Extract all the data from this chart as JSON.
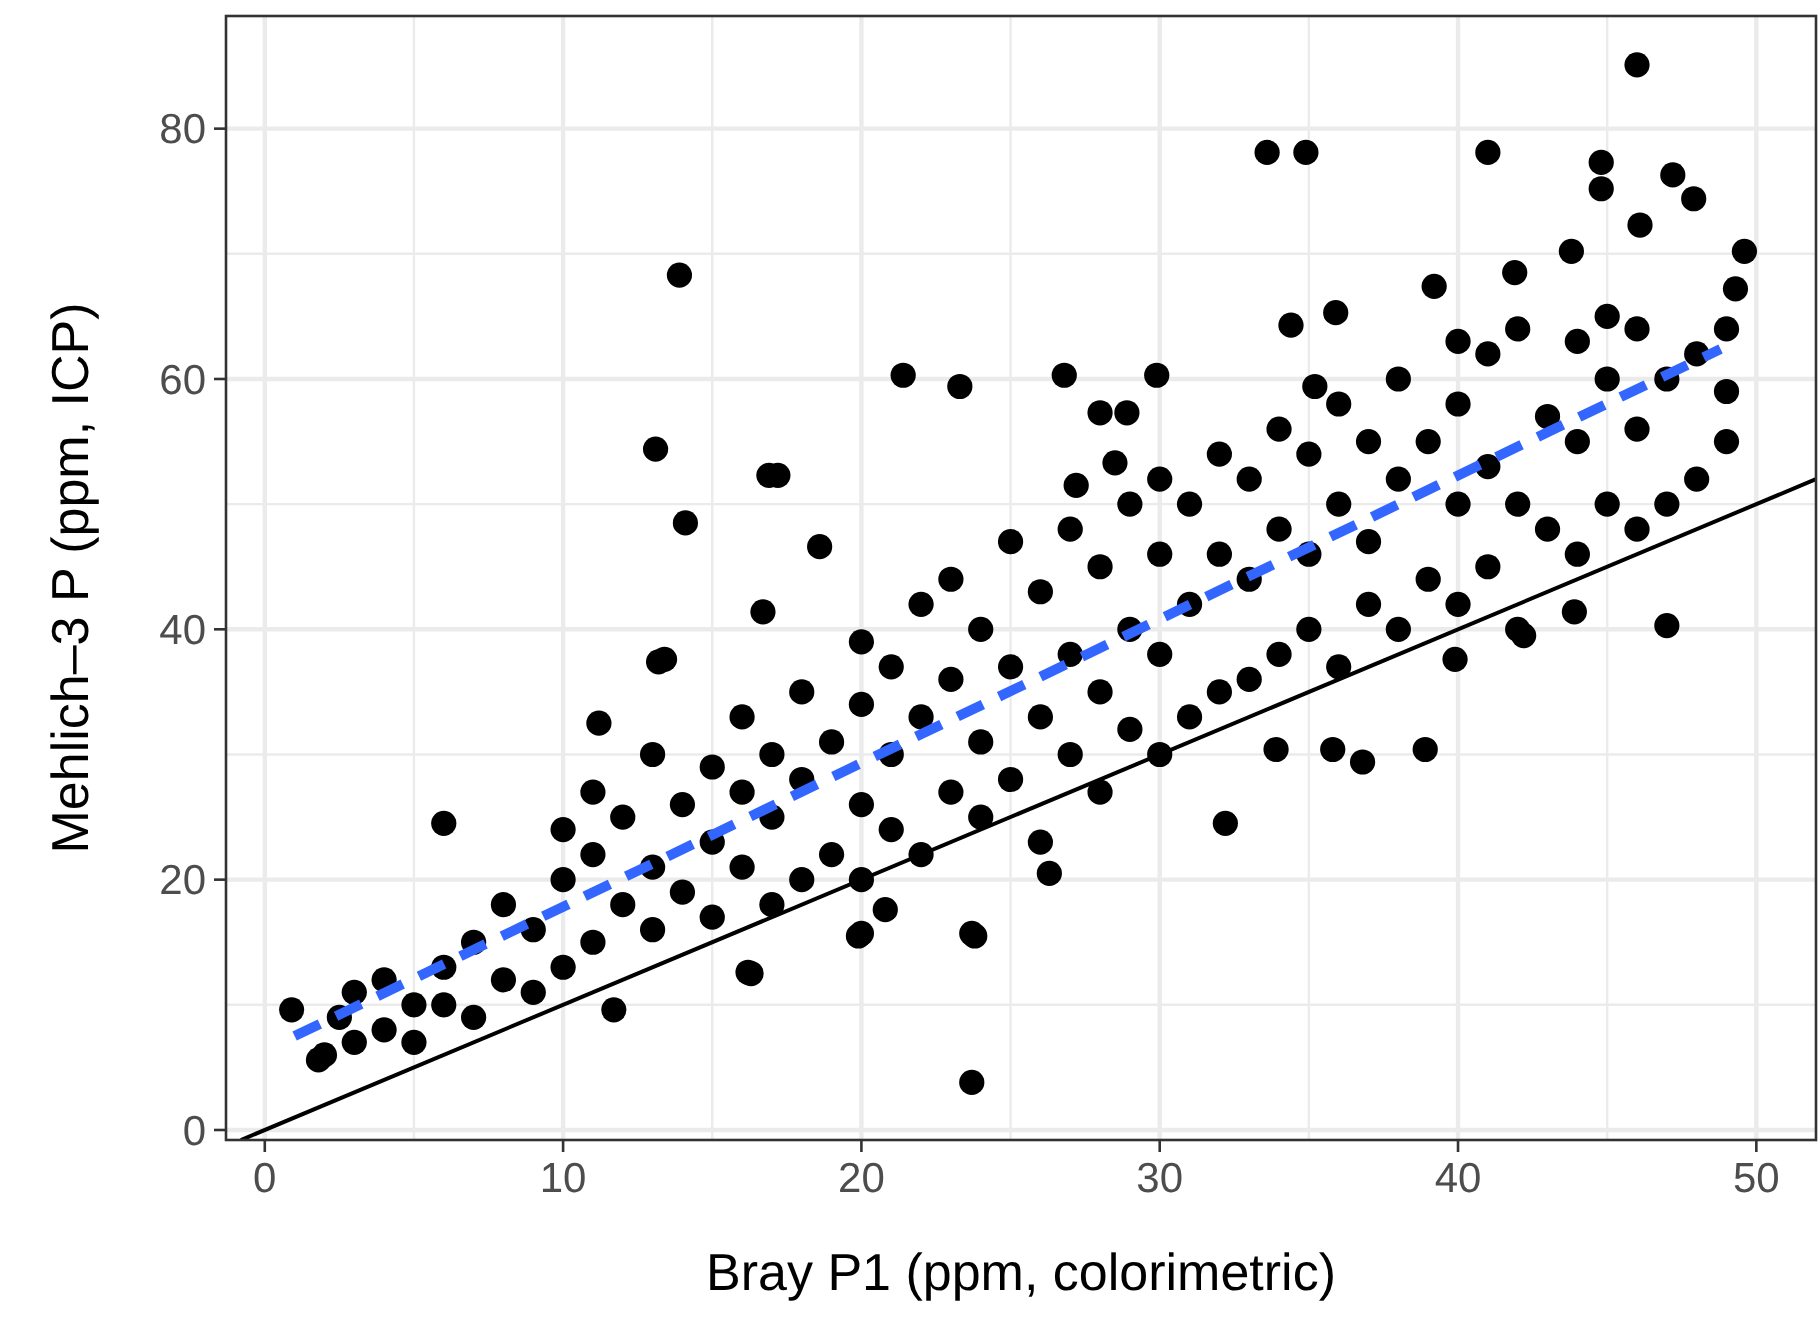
{
  "chart_data": {
    "type": "scatter",
    "xlabel": "Bray P1 (ppm, colorimetric)",
    "ylabel": "Mehlich–3 P (ppm, ICP)",
    "xlim": [
      -1.3,
      52
    ],
    "ylim": [
      -0.8,
      89
    ],
    "xticks": [
      0,
      10,
      20,
      30,
      40,
      50
    ],
    "yticks": [
      0,
      20,
      40,
      60,
      80
    ],
    "grid": true,
    "series": [
      {
        "color": "#000000",
        "marker": "circle",
        "x": [
          13.9,
          13.1,
          14.1,
          21.4,
          23.3,
          17.2,
          16.9,
          18.6,
          13.2,
          23.7,
          23.7,
          20.0,
          16.2,
          11.7,
          33.6,
          34.9,
          41.0,
          46.0,
          44.8,
          44.8,
          47.2,
          47.9,
          49.6,
          49.3,
          43.8,
          46.1,
          39.2,
          41.9,
          34.4,
          35.9,
          26.8,
          29.9,
          28.0,
          28.9,
          35.2,
          28.5,
          27.2,
          47.0,
          43.9,
          32.2,
          26.3,
          33.9,
          35.8,
          36.8,
          38.9,
          42.2,
          39.9,
          0.9,
          1.8,
          6.0,
          16.3,
          19.9,
          20.8,
          23.8,
          11.2,
          13.4,
          16.7,
          2,
          2.5,
          3,
          3,
          4,
          4,
          5,
          5,
          6,
          6,
          7,
          7,
          8,
          8,
          9,
          9,
          10,
          10,
          10,
          11,
          11,
          11,
          12,
          12,
          13,
          13,
          13,
          14,
          14,
          15,
          15,
          15,
          16,
          16,
          16,
          17,
          17,
          17,
          18,
          18,
          18,
          19,
          19,
          20,
          20,
          20,
          20,
          21,
          21,
          21,
          22,
          22,
          22,
          23,
          23,
          23,
          24,
          24,
          24,
          25,
          25,
          25,
          26,
          26,
          26,
          27,
          27,
          27,
          28,
          28,
          28,
          29,
          29,
          29,
          30,
          30,
          30,
          30,
          31,
          31,
          31,
          32,
          32,
          32,
          33,
          33,
          33,
          34,
          34,
          34,
          35,
          35,
          35,
          36,
          36,
          36,
          37,
          37,
          37,
          38,
          38,
          38,
          39,
          39,
          40,
          40,
          40,
          40,
          41,
          41,
          41,
          42,
          42,
          42,
          43,
          43,
          44,
          44,
          44,
          45,
          45,
          45,
          46,
          46,
          46,
          47,
          47,
          48,
          48,
          49,
          49,
          49
        ],
        "values": [
          68.3,
          54.4,
          48.5,
          60.3,
          59.4,
          52.3,
          52.3,
          46.6,
          37.4,
          3.8,
          15.7,
          15.7,
          12.6,
          9.6,
          78.1,
          78.1,
          78.1,
          85.1,
          77.3,
          75.2,
          76.3,
          74.4,
          70.2,
          67.2,
          70.2,
          72.3,
          67.4,
          68.5,
          64.3,
          65.3,
          60.3,
          60.3,
          57.3,
          57.3,
          59.4,
          53.3,
          51.5,
          40.3,
          41.4,
          24.5,
          20.5,
          30.4,
          30.4,
          29.4,
          30.4,
          39.5,
          37.6,
          9.6,
          5.6,
          24.5,
          12.5,
          15.5,
          17.6,
          15.5,
          32.5,
          37.6,
          41.4,
          6,
          9,
          11,
          7,
          8,
          12,
          10,
          7,
          13,
          10,
          9,
          15,
          12,
          18,
          11,
          16,
          20,
          13,
          24,
          15,
          22,
          27,
          18,
          25,
          16,
          21,
          30,
          19,
          26,
          17,
          23,
          29,
          21,
          27,
          33,
          18,
          25,
          30,
          20,
          28,
          35,
          22,
          31,
          20,
          26,
          34,
          39,
          24,
          30,
          37,
          22,
          33,
          42,
          27,
          36,
          44,
          25,
          31,
          40,
          28,
          37,
          47,
          23,
          33,
          43,
          30,
          38,
          48,
          27,
          35,
          45,
          32,
          40,
          50,
          30,
          38,
          46,
          52,
          33,
          42,
          50,
          35,
          46,
          54,
          36,
          44,
          52,
          38,
          48,
          56,
          40,
          46,
          54,
          37,
          50,
          58,
          42,
          47,
          55,
          40,
          52,
          60,
          44,
          55,
          42,
          50,
          58,
          63,
          45,
          53,
          62,
          40,
          50,
          64,
          48,
          57,
          46,
          55,
          63,
          50,
          60,
          65,
          48,
          56,
          64,
          50,
          60,
          52,
          62,
          55,
          59,
          64
        ]
      },
      {
        "type": "line",
        "color": "#3366ff",
        "line_style": "dashed",
        "x": [
          1.0,
          48.8
        ],
        "values": [
          7.5,
          62.4
        ]
      },
      {
        "type": "line",
        "color": "#000000",
        "line_style": "solid",
        "x": [
          -0.8,
          52
        ],
        "values": [
          -0.8,
          52
        ]
      }
    ]
  }
}
